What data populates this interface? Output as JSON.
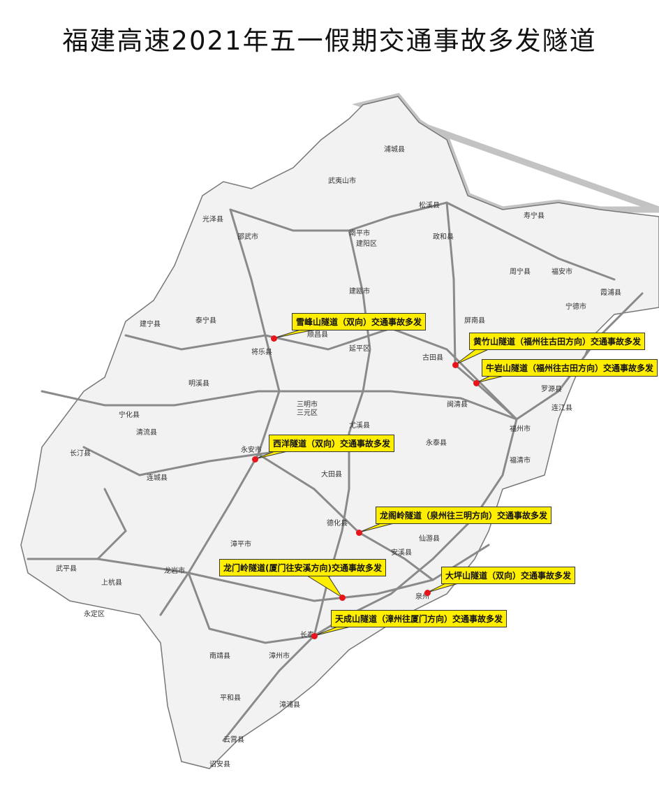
{
  "title": "福建高速2021年五一假期交通事故多发隧道",
  "colors": {
    "callout": "#ffee00",
    "marker": "#e8141a",
    "land": "#f2f2f2",
    "road": "#8a8a8a",
    "border": "#777777"
  },
  "cities": [
    "光泽县",
    "武夷山市",
    "浦城县",
    "南平市",
    "建阳区",
    "松溪县",
    "政和县",
    "建瓯市",
    "寿宁县",
    "周宁县",
    "福安市",
    "霞浦县",
    "宁德市",
    "屏南县",
    "古田县",
    "罗源县",
    "连江县",
    "福州市",
    "闽清县",
    "邵武市",
    "泰宁县",
    "建宁县",
    "将乐县",
    "延平区",
    "顺昌县",
    "明溪县",
    "三明市",
    "三元区",
    "宁化县",
    "清流县",
    "永安市",
    "尤溪县",
    "大田县",
    "永泰县",
    "福清市",
    "长汀县",
    "连城县",
    "德化县",
    "仙游县",
    "龙岩市",
    "漳平市",
    "上杭县",
    "武平县",
    "永定区",
    "安溪县",
    "泉州",
    "漳州市",
    "长泰",
    "南靖县",
    "平和县",
    "漳浦县",
    "云霄县",
    "诏安县"
  ],
  "callouts": [
    {
      "label": "雪峰山隧道（双向）交通事故多发"
    },
    {
      "label": "黄竹山隧道（福州往古田方向）交通事故多发"
    },
    {
      "label": "牛岩山隧道（福州往古田方向）交通事故多发"
    },
    {
      "label": "西洋隧道（双向）交通事故多发"
    },
    {
      "label": "龙阁岭隧道（泉州往三明方向）交通事故多发"
    },
    {
      "label": "龙门岭隧道(厦门往安溪方向)交通事故多发"
    },
    {
      "label": "大坪山隧道（双向）交通事故多发"
    },
    {
      "label": "天成山隧道（漳州往厦门方向）交通事故多发"
    }
  ]
}
